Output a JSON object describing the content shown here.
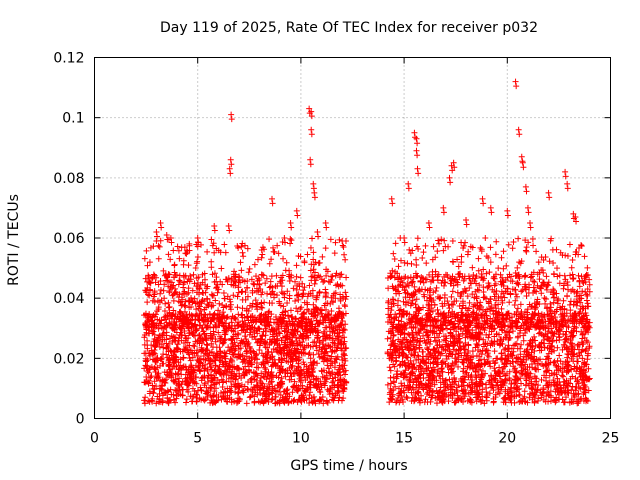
{
  "chart_data": {
    "type": "scatter",
    "title": "Day 119 of 2025, Rate Of TEC Index for receiver p032",
    "xlabel": "GPS time / hours",
    "ylabel": "ROTI / TECUs",
    "xlim": [
      0,
      25
    ],
    "ylim": [
      0,
      0.12
    ],
    "x_ticks": [
      0,
      5,
      10,
      15,
      20,
      25
    ],
    "x_tick_labels": [
      "0",
      "5",
      "10",
      "15",
      "20",
      "25"
    ],
    "y_ticks": [
      0,
      0.02,
      0.04,
      0.06,
      0.08,
      0.1,
      0.12
    ],
    "y_tick_labels": [
      "0",
      "0.02",
      "0.04",
      "0.06",
      "0.08",
      "0.1",
      "0.12"
    ],
    "grid": true,
    "marker": "plus",
    "color": "#ff0000",
    "series": [
      {
        "name": "ROTI",
        "segments": [
          {
            "x_start": 2.4,
            "x_end": 12.2,
            "typical_range": [
              0.005,
              0.035
            ]
          },
          {
            "x_start": 14.2,
            "x_end": 24.0,
            "typical_range": [
              0.005,
              0.035
            ]
          }
        ],
        "peaks": [
          {
            "x": 3.0,
            "y": 0.062
          },
          {
            "x": 3.2,
            "y": 0.065
          },
          {
            "x": 3.5,
            "y": 0.061
          },
          {
            "x": 3.7,
            "y": 0.06
          },
          {
            "x": 5.0,
            "y": 0.06
          },
          {
            "x": 5.8,
            "y": 0.064
          },
          {
            "x": 6.5,
            "y": 0.064
          },
          {
            "x": 6.6,
            "y": 0.086
          },
          {
            "x": 6.55,
            "y": 0.083
          },
          {
            "x": 6.62,
            "y": 0.101
          },
          {
            "x": 8.1,
            "y": 0.056
          },
          {
            "x": 8.6,
            "y": 0.073
          },
          {
            "x": 9.2,
            "y": 0.06
          },
          {
            "x": 9.5,
            "y": 0.065
          },
          {
            "x": 9.8,
            "y": 0.069
          },
          {
            "x": 10.4,
            "y": 0.103
          },
          {
            "x": 10.5,
            "y": 0.102
          },
          {
            "x": 10.5,
            "y": 0.096
          },
          {
            "x": 10.45,
            "y": 0.086
          },
          {
            "x": 10.6,
            "y": 0.078
          },
          {
            "x": 10.65,
            "y": 0.075
          },
          {
            "x": 10.8,
            "y": 0.062
          },
          {
            "x": 11.2,
            "y": 0.065
          },
          {
            "x": 12.0,
            "y": 0.059
          },
          {
            "x": 14.4,
            "y": 0.073
          },
          {
            "x": 15.0,
            "y": 0.06
          },
          {
            "x": 15.2,
            "y": 0.078
          },
          {
            "x": 15.5,
            "y": 0.095
          },
          {
            "x": 15.6,
            "y": 0.093
          },
          {
            "x": 15.6,
            "y": 0.089
          },
          {
            "x": 15.65,
            "y": 0.083
          },
          {
            "x": 16.2,
            "y": 0.065
          },
          {
            "x": 16.9,
            "y": 0.07
          },
          {
            "x": 17.2,
            "y": 0.08
          },
          {
            "x": 17.3,
            "y": 0.084
          },
          {
            "x": 17.4,
            "y": 0.085
          },
          {
            "x": 18.0,
            "y": 0.066
          },
          {
            "x": 18.8,
            "y": 0.073
          },
          {
            "x": 19.2,
            "y": 0.07
          },
          {
            "x": 20.0,
            "y": 0.069
          },
          {
            "x": 20.4,
            "y": 0.112
          },
          {
            "x": 20.55,
            "y": 0.096
          },
          {
            "x": 20.7,
            "y": 0.087
          },
          {
            "x": 20.75,
            "y": 0.085
          },
          {
            "x": 20.9,
            "y": 0.077
          },
          {
            "x": 21.0,
            "y": 0.07
          },
          {
            "x": 21.1,
            "y": 0.065
          },
          {
            "x": 22.0,
            "y": 0.075
          },
          {
            "x": 22.8,
            "y": 0.082
          },
          {
            "x": 22.9,
            "y": 0.078
          },
          {
            "x": 23.2,
            "y": 0.068
          },
          {
            "x": 23.3,
            "y": 0.067
          },
          {
            "x": 23.5,
            "y": 0.04
          }
        ]
      }
    ]
  }
}
